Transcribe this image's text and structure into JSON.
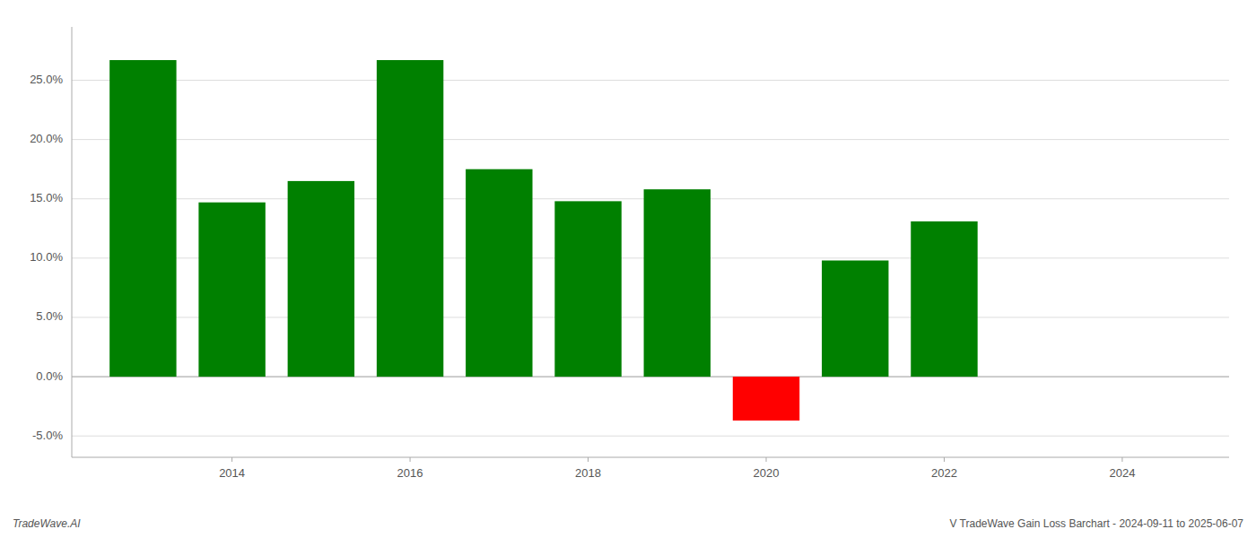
{
  "chart_data": {
    "type": "bar",
    "x": [
      2013,
      2014,
      2015,
      2016,
      2017,
      2018,
      2019,
      2020,
      2021,
      2022
    ],
    "values": [
      0.267,
      0.147,
      0.165,
      0.267,
      0.175,
      0.148,
      0.158,
      -0.037,
      0.098,
      0.131
    ],
    "colors": [
      "#008000",
      "#008000",
      "#008000",
      "#008000",
      "#008000",
      "#008000",
      "#008000",
      "#ff0000",
      "#008000",
      "#008000"
    ],
    "xlim": [
      2012.2,
      2025.2
    ],
    "xticks": [
      2014,
      2016,
      2018,
      2020,
      2022,
      2024
    ],
    "ylim": [
      -0.068,
      0.295
    ],
    "yticks": [
      {
        "value": -0.05,
        "label": "-5.0%"
      },
      {
        "value": 0.0,
        "label": "0.0%"
      },
      {
        "value": 0.05,
        "label": "5.0%"
      },
      {
        "value": 0.1,
        "label": "10.0%"
      },
      {
        "value": 0.15,
        "label": "15.0%"
      },
      {
        "value": 0.2,
        "label": "20.0%"
      },
      {
        "value": 0.25,
        "label": "25.0%"
      }
    ],
    "grid": true,
    "annotations": [
      "TradeWave.AI",
      "V TradeWave Gain Loss Barchart - 2024-09-11 to 2025-06-07"
    ]
  }
}
